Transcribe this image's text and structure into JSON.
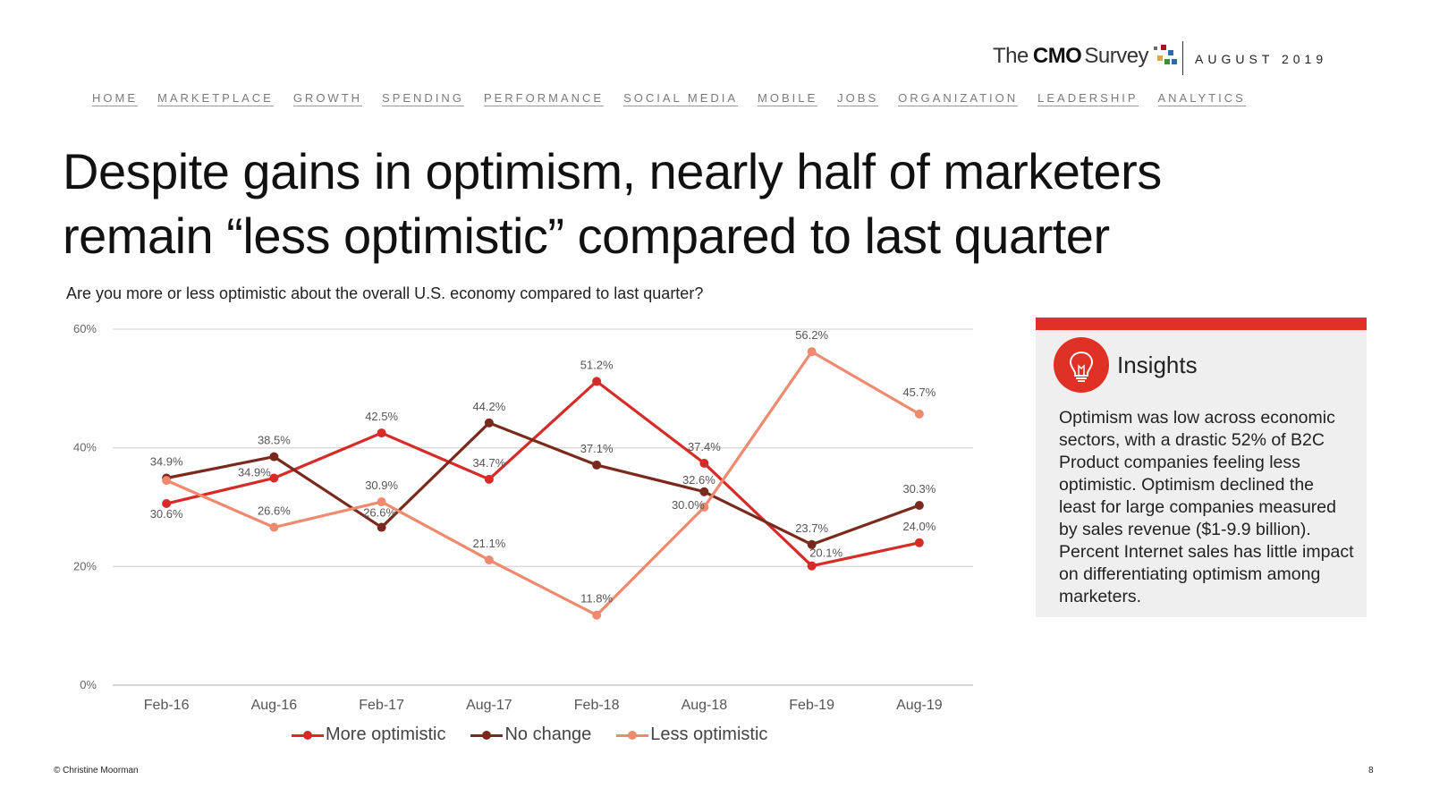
{
  "header": {
    "logo_the": "The",
    "logo_cmo": "CMO",
    "logo_survey": "Survey",
    "date": "AUGUST 2019"
  },
  "nav": [
    "HOME",
    "MARKETPLACE",
    "GROWTH",
    "SPENDING",
    "PERFORMANCE",
    "SOCIAL MEDIA",
    "MOBILE",
    "JOBS",
    "ORGANIZATION",
    "LEADERSHIP",
    "ANALYTICS"
  ],
  "title": "Despite gains in optimism, nearly half of marketers remain “less optimistic” compared to last quarter",
  "question": "Are you more or less optimistic about the overall U.S. economy compared to last quarter?",
  "chart_data": {
    "type": "line",
    "categories": [
      "Feb-16",
      "Aug-16",
      "Feb-17",
      "Aug-17",
      "Feb-18",
      "Aug-18",
      "Feb-19",
      "Aug-19"
    ],
    "ylim": [
      0,
      60
    ],
    "yticks": [
      0,
      20,
      40,
      60
    ],
    "ytick_labels": [
      "0%",
      "20%",
      "40%",
      "60%"
    ],
    "grid": true,
    "legend_position": "bottom",
    "series": [
      {
        "name": "More optimistic",
        "color": "#d62b27",
        "values": [
          30.6,
          34.9,
          42.5,
          34.7,
          51.2,
          37.4,
          20.1,
          24.0
        ],
        "labels": [
          "30.6%",
          "34.9%",
          "42.5%",
          "34.7%",
          "51.2%",
          "37.4%",
          "20.1%",
          "24.0%"
        ]
      },
      {
        "name": "No change",
        "color": "#7a2a1c",
        "values": [
          34.9,
          38.5,
          26.6,
          44.2,
          37.1,
          32.6,
          23.7,
          30.3
        ],
        "labels": [
          "34.9%",
          "38.5%",
          "26.6%",
          "44.2%",
          "37.1%",
          "32.6%",
          "23.7%",
          "30.3%"
        ]
      },
      {
        "name": "Less optimistic",
        "color": "#f08a6e",
        "values": [
          34.5,
          26.6,
          30.9,
          21.1,
          11.8,
          30.0,
          56.2,
          45.7
        ],
        "labels": [
          "",
          "26.6%",
          "30.9%",
          "21.1%",
          "11.8%",
          "30.0%",
          "56.2%",
          "45.7%"
        ]
      }
    ]
  },
  "insights": {
    "heading": "Insights",
    "icon": "lightbulb-icon",
    "accent_color": "#e03127",
    "body": "Optimism was low across economic sectors, with a drastic 52% of B2C Product companies feeling less optimistic. Optimism declined the least for large companies measured by sales revenue ($1-9.9 billion). Percent Internet sales has little impact on differentiating optimism among marketers."
  },
  "footer": {
    "copyright": "© Christine Moorman",
    "page_number": "8"
  }
}
